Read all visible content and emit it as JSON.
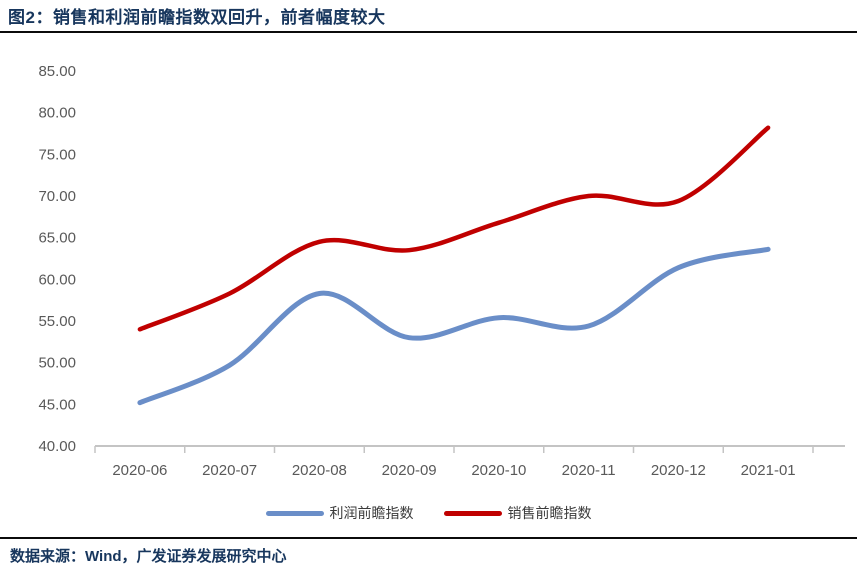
{
  "header": {
    "title": "图2：销售和利润前瞻指数双回升，前者幅度较大"
  },
  "footer": {
    "source": "数据来源：Wind，广发证券发展研究中心"
  },
  "colors": {
    "title_navy": "#17365D",
    "axis_gray": "#C4C4C4",
    "tick_label_gray": "#595959",
    "divider_black": "#0b0b0b",
    "profit_blue": "#6A8EC8",
    "sales_red": "#C00000"
  },
  "chart_data": {
    "type": "line",
    "title": "销售和利润前瞻指数双回升，前者幅度较大",
    "categories": [
      "2020-06",
      "2020-07",
      "2020-08",
      "2020-09",
      "2020-10",
      "2020-11",
      "2020-12",
      "2021-01"
    ],
    "series": [
      {
        "name": "利润前瞻指数",
        "color": "#6A8EC8",
        "values": [
          45.2,
          49.7,
          58.3,
          53.0,
          55.4,
          54.4,
          61.4,
          63.6
        ]
      },
      {
        "name": "销售前瞻指数",
        "color": "#C00000",
        "values": [
          54.0,
          58.3,
          64.5,
          63.5,
          66.8,
          70.0,
          69.4,
          78.2
        ]
      }
    ],
    "xlabel": "",
    "ylabel": "",
    "ylim": [
      40,
      85
    ],
    "ytick_step": 5,
    "y_tick_labels": [
      "85.00",
      "80.00",
      "75.00",
      "70.00",
      "65.00",
      "60.00",
      "55.00",
      "50.00",
      "45.00",
      "40.00"
    ],
    "grid": false,
    "line_smoothing": "spline",
    "legend_position": "bottom"
  }
}
